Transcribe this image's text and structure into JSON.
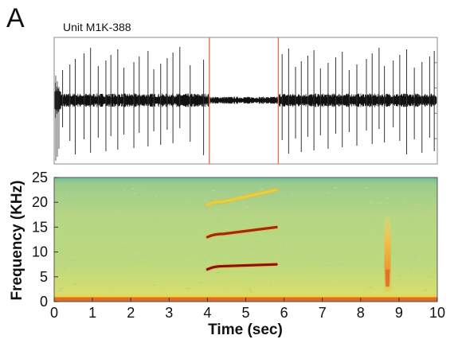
{
  "panel_letter": "A",
  "unit_label": "Unit M1K-388",
  "chart_data": [
    {
      "type": "line",
      "title": "Unit M1K-388",
      "subject": "spike raster / voltage trace",
      "x_range": [
        0,
        10
      ],
      "event_markers_sec": [
        4.05,
        5.85
      ],
      "marker_color": "#d9775a",
      "trace_color": "#111111",
      "spike_times_sec": [
        0.22,
        0.41,
        0.55,
        0.78,
        0.95,
        1.15,
        1.35,
        1.48,
        1.66,
        1.82,
        2.08,
        2.22,
        2.45,
        2.6,
        2.78,
        2.95,
        3.1,
        3.28,
        3.55,
        3.9,
        5.95,
        6.12,
        6.3,
        6.45,
        6.62,
        6.78,
        6.95,
        7.15,
        7.35,
        7.52,
        7.7,
        7.9,
        8.15,
        8.3,
        8.48,
        8.62,
        8.85,
        9.02,
        9.2,
        9.4,
        9.6,
        9.8,
        9.92
      ]
    },
    {
      "type": "heatmap",
      "subject": "spectrogram",
      "xlabel": "Time (sec)",
      "ylabel": "Frequency (KHz)",
      "xlim": [
        0,
        10
      ],
      "ylim": [
        0,
        25
      ],
      "x_ticks": [
        "0",
        "1",
        "2",
        "3",
        "4",
        "5",
        "6",
        "7",
        "8",
        "9",
        "10"
      ],
      "y_ticks": [
        "0",
        "5",
        "10",
        "15",
        "20",
        "25"
      ],
      "background_color": "#b9d78a",
      "harmonics": [
        {
          "t_start": 4.0,
          "t_end": 5.8,
          "f_start": 6.5,
          "f_end": 7.5,
          "color": "#8a1010"
        },
        {
          "t_start": 4.0,
          "t_end": 5.8,
          "f_start": 13.0,
          "f_end": 15.0,
          "color": "#9a2a10"
        },
        {
          "t_start": 4.0,
          "t_end": 5.8,
          "f_start": 19.5,
          "f_end": 22.5,
          "color": "#e8d23a"
        }
      ],
      "broadband_events": [
        {
          "t": 8.7,
          "f_min": 2.0,
          "f_max": 17.0,
          "color": "#f2b838"
        }
      ]
    }
  ]
}
